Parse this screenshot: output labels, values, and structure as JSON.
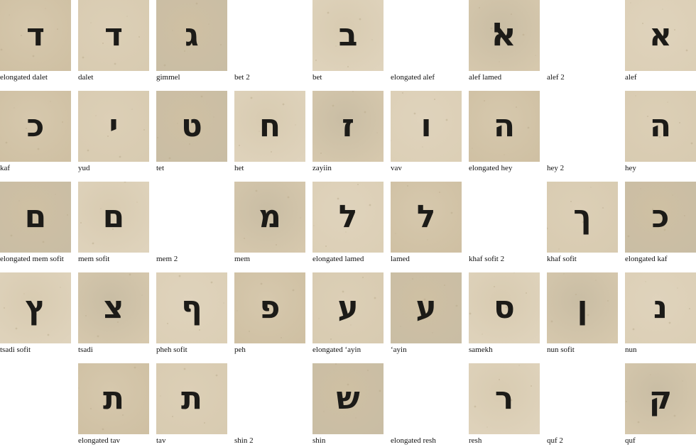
{
  "palette": {
    "background": "#ffffff",
    "parchment": "#d9ccb3",
    "ink": "#1c1b18"
  },
  "cells": [
    [
      {
        "label": "elongated dalet",
        "glyph": "ד",
        "image": true
      },
      {
        "label": "dalet",
        "glyph": "ד",
        "image": true
      },
      {
        "label": "gimmel",
        "glyph": "ג",
        "image": true
      },
      {
        "label": "bet 2",
        "glyph": "",
        "image": false
      },
      {
        "label": "bet",
        "glyph": "ב",
        "image": true
      },
      {
        "label": "elongated alef",
        "glyph": "",
        "image": false
      },
      {
        "label": "alef lamed",
        "glyph": "ﭏ",
        "image": true
      },
      {
        "label": "alef 2",
        "glyph": "",
        "image": false
      },
      {
        "label": "alef",
        "glyph": "א",
        "image": true
      }
    ],
    [
      {
        "label": "kaf",
        "glyph": "כ",
        "image": true
      },
      {
        "label": "yud",
        "glyph": "י",
        "image": true
      },
      {
        "label": "tet",
        "glyph": "ט",
        "image": true
      },
      {
        "label": "het",
        "glyph": "ח",
        "image": true
      },
      {
        "label": "zayiin",
        "glyph": "ז",
        "image": true
      },
      {
        "label": "vav",
        "glyph": "ו",
        "image": true
      },
      {
        "label": "elongated hey",
        "glyph": "ה",
        "image": true
      },
      {
        "label": "hey 2",
        "glyph": "",
        "image": false
      },
      {
        "label": "hey",
        "glyph": "ה",
        "image": true
      }
    ],
    [
      {
        "label": "elongated mem sofit",
        "glyph": "ם",
        "image": true
      },
      {
        "label": "mem sofit",
        "glyph": "ם",
        "image": true
      },
      {
        "label": "mem 2",
        "glyph": "",
        "image": false
      },
      {
        "label": "mem",
        "glyph": "מ",
        "image": true
      },
      {
        "label": "elongated lamed",
        "glyph": "ל",
        "image": true
      },
      {
        "label": "lamed",
        "glyph": "ל",
        "image": true
      },
      {
        "label": "khaf sofit 2",
        "glyph": "",
        "image": false
      },
      {
        "label": "khaf sofit",
        "glyph": "ך",
        "image": true
      },
      {
        "label": "elongated kaf",
        "glyph": "כ",
        "image": true
      }
    ],
    [
      {
        "label": "tsadi sofit",
        "glyph": "ץ",
        "image": true
      },
      {
        "label": "tsadi",
        "glyph": "צ",
        "image": true
      },
      {
        "label": "pheh sofit",
        "glyph": "ף",
        "image": true
      },
      {
        "label": "peh",
        "glyph": "פ",
        "image": true
      },
      {
        "label": "elongated ‘ayin",
        "glyph": "ע",
        "image": true
      },
      {
        "label": "‘ayin",
        "glyph": "ע",
        "image": true
      },
      {
        "label": "samekh",
        "glyph": "ס",
        "image": true
      },
      {
        "label": "nun sofit",
        "glyph": "ן",
        "image": true
      },
      {
        "label": "nun",
        "glyph": "נ",
        "image": true
      }
    ],
    [
      {
        "label": "",
        "glyph": "",
        "image": false
      },
      {
        "label": "elongated tav",
        "glyph": "ת",
        "image": true
      },
      {
        "label": "tav",
        "glyph": "ת",
        "image": true
      },
      {
        "label": "shin 2",
        "glyph": "",
        "image": false
      },
      {
        "label": "shin",
        "glyph": "ש",
        "image": true
      },
      {
        "label": "elongated resh",
        "glyph": "",
        "image": false
      },
      {
        "label": "resh",
        "glyph": "ר",
        "image": true
      },
      {
        "label": "quf 2",
        "glyph": "",
        "image": false
      },
      {
        "label": "quf",
        "glyph": "ק",
        "image": true
      }
    ]
  ]
}
